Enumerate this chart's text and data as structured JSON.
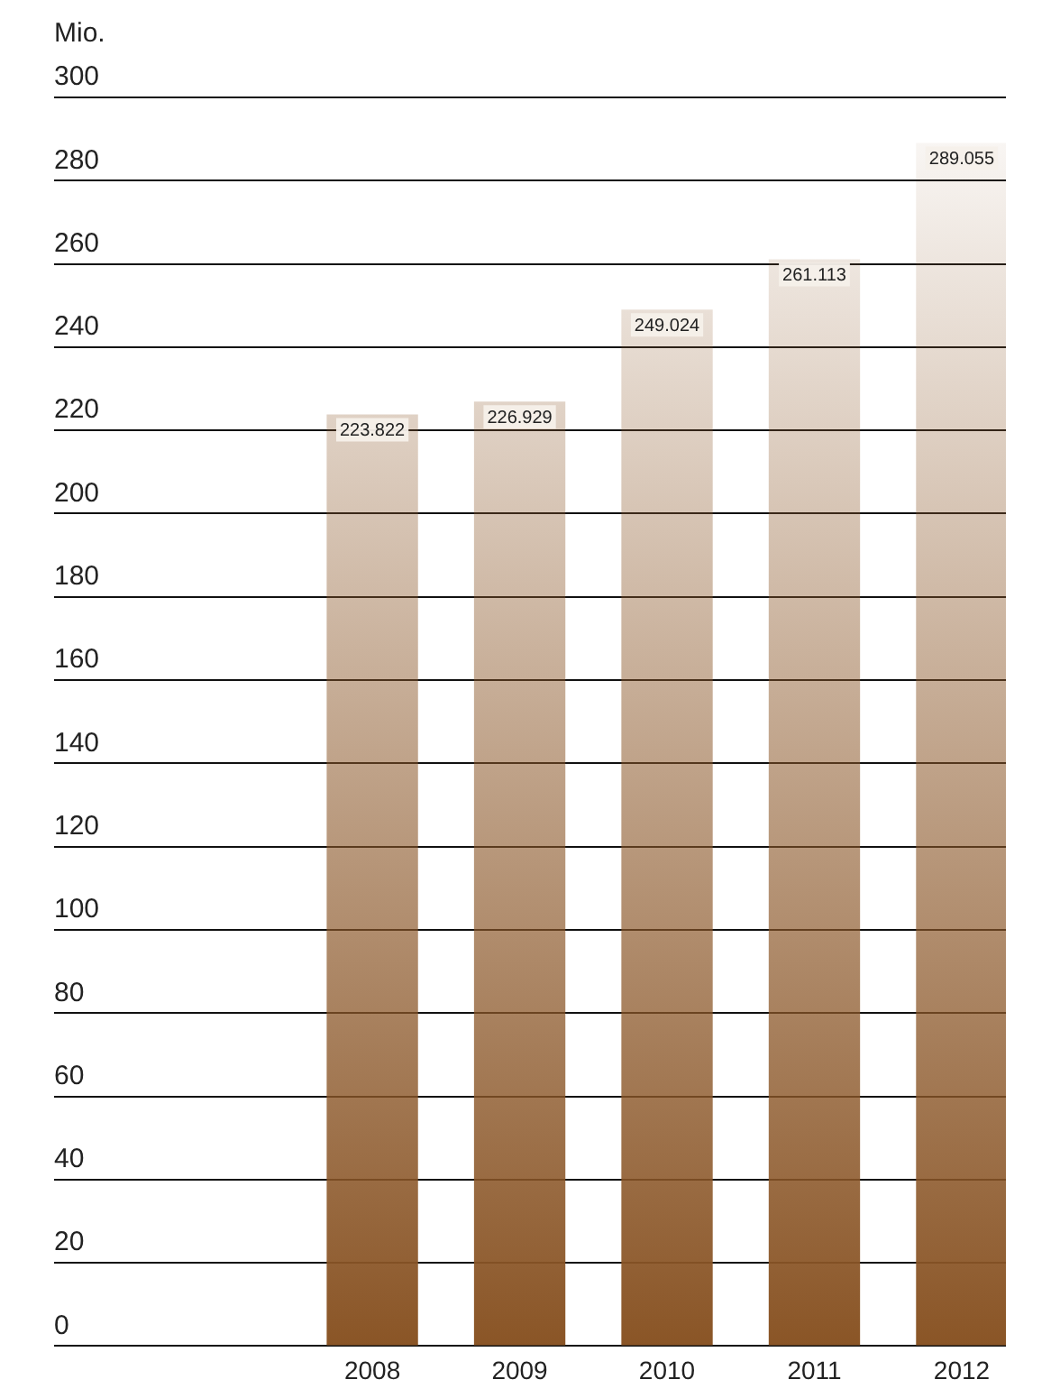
{
  "chart_data": {
    "type": "bar",
    "ylabel": "Mio.",
    "categories": [
      "2008",
      "2009",
      "2010",
      "2011",
      "2012"
    ],
    "values": [
      223.822,
      226.929,
      249.024,
      261.113,
      289.055
    ],
    "value_labels": [
      "223.822",
      "226.929",
      "249.024",
      "261.113",
      "289.055"
    ],
    "color": "#8a5526",
    "ylim": [
      0,
      300
    ],
    "yticks": [
      0,
      20,
      40,
      60,
      80,
      100,
      120,
      140,
      160,
      180,
      200,
      220,
      240,
      260,
      280,
      300
    ],
    "grid": "y",
    "legend": false
  }
}
